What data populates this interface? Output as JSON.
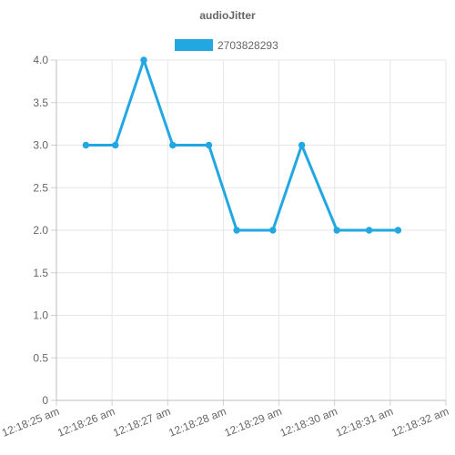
{
  "chart_data": {
    "type": "line",
    "title": "audioJitter",
    "xlabel": "",
    "ylabel": "",
    "x_ticks": [
      "12:18:25 am",
      "12:18:26 am",
      "12:18:27 am",
      "12:18:28 am",
      "12:18:29 am",
      "12:18:30 am",
      "12:18:31 am",
      "12:18:32 am"
    ],
    "y_ticks": [
      "0",
      "0.5",
      "1.0",
      "1.5",
      "2.0",
      "2.5",
      "3.0",
      "3.5",
      "4.0"
    ],
    "ylim": [
      0,
      4
    ],
    "xlim": [
      "12:18:25",
      "12:18:32"
    ],
    "grid": true,
    "legend_position": "top",
    "series": [
      {
        "name": "2703828293",
        "color": "#22a7e2",
        "points": [
          {
            "x": "12:18:25.53",
            "y": 3
          },
          {
            "x": "12:18:26.06",
            "y": 3
          },
          {
            "x": "12:18:26.57",
            "y": 4
          },
          {
            "x": "12:18:27.09",
            "y": 3
          },
          {
            "x": "12:18:27.74",
            "y": 3
          },
          {
            "x": "12:18:28.24",
            "y": 2
          },
          {
            "x": "12:18:28.89",
            "y": 2
          },
          {
            "x": "12:18:29.41",
            "y": 3
          },
          {
            "x": "12:18:30.04",
            "y": 2
          },
          {
            "x": "12:18:30.62",
            "y": 2
          },
          {
            "x": "12:18:31.14",
            "y": 2
          }
        ]
      }
    ]
  }
}
